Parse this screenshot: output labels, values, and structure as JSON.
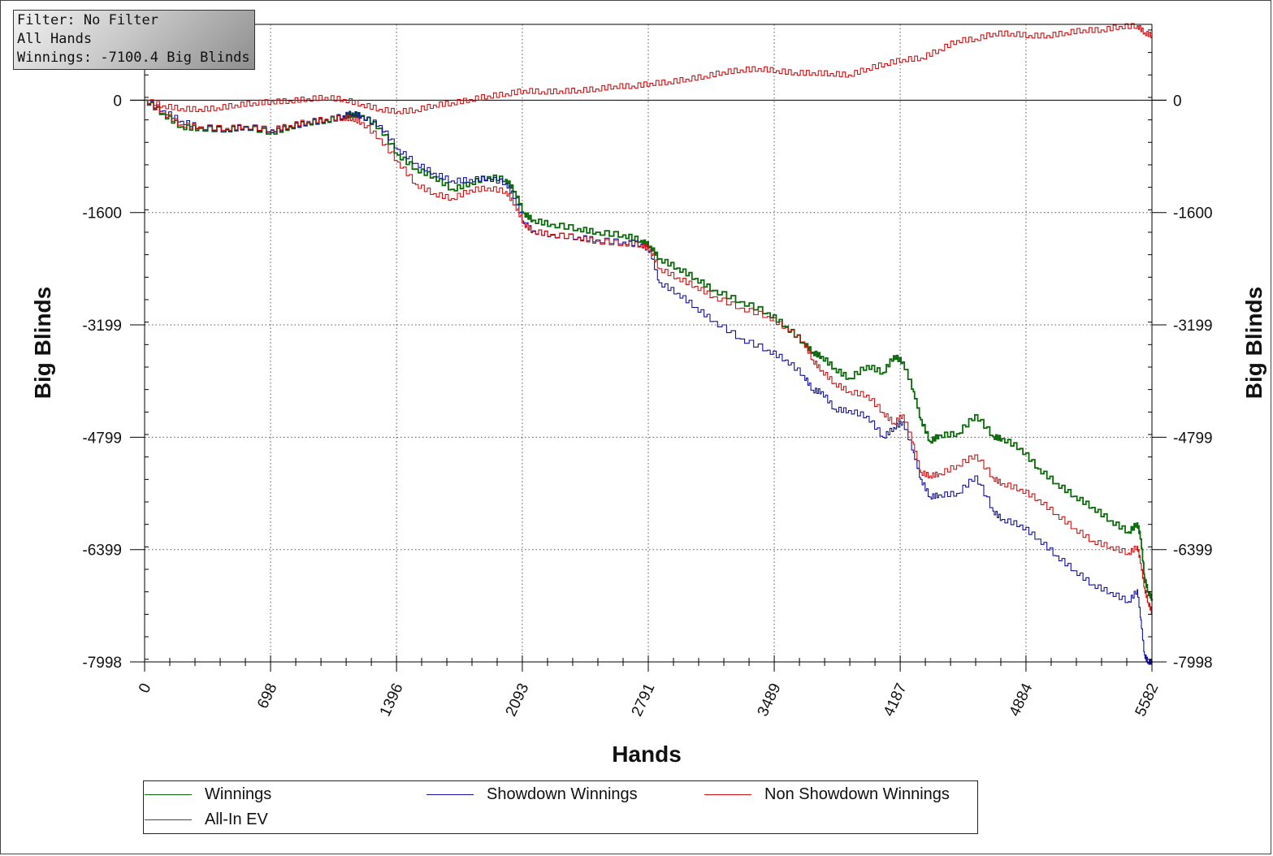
{
  "filter_box": {
    "line1": "Filter: No Filter",
    "line2": "All Hands",
    "line3": "Winnings: -7100.4 Big Blinds"
  },
  "chart_data": {
    "type": "line",
    "xlabel": "Hands",
    "ylabel": "Big Blinds",
    "xlim": [
      0,
      5582
    ],
    "ylim": [
      -7998,
      1080
    ],
    "x_ticks": [
      "0",
      "698",
      "1396",
      "2093",
      "2791",
      "3489",
      "4187",
      "4884",
      "5582"
    ],
    "y_ticks": [
      "0",
      "-1600",
      "-3199",
      "-4799",
      "-6399",
      "-7998"
    ],
    "y_tick_values": [
      0,
      -1600,
      -3199,
      -4799,
      -6399,
      -7998
    ],
    "grid": true,
    "legend": "bottom",
    "series": [
      {
        "name": "Winnings",
        "color": "#0a6b0a",
        "x": [
          0,
          100,
          200,
          300,
          450,
          550,
          700,
          800,
          900,
          1000,
          1100,
          1150,
          1200,
          1300,
          1400,
          1500,
          1600,
          1700,
          1800,
          1900,
          2000,
          2050,
          2100,
          2150,
          2250,
          2400,
          2500,
          2650,
          2750,
          2800,
          2850,
          2950,
          3050,
          3150,
          3300,
          3450,
          3550,
          3650,
          3700,
          3750,
          3820,
          3900,
          4000,
          4090,
          4150,
          4200,
          4260,
          4300,
          4350,
          4400,
          4500,
          4600,
          4700,
          4750,
          4850,
          4950,
          5050,
          5150,
          5250,
          5350,
          5450,
          5500,
          5520,
          5540,
          5560,
          5582
        ],
        "y": [
          0,
          -200,
          -380,
          -400,
          -420,
          -380,
          -460,
          -380,
          -320,
          -290,
          -230,
          -200,
          -220,
          -400,
          -780,
          -980,
          -1090,
          -1270,
          -1180,
          -1090,
          -1130,
          -1300,
          -1610,
          -1710,
          -1770,
          -1830,
          -1880,
          -1920,
          -2000,
          -2080,
          -2260,
          -2390,
          -2540,
          -2710,
          -2870,
          -3030,
          -3220,
          -3460,
          -3590,
          -3650,
          -3820,
          -3960,
          -3780,
          -3880,
          -3640,
          -3730,
          -4150,
          -4550,
          -4860,
          -4770,
          -4750,
          -4480,
          -4790,
          -4820,
          -4960,
          -5250,
          -5460,
          -5640,
          -5800,
          -5990,
          -6150,
          -6020,
          -6250,
          -6800,
          -7000,
          -7100.4
        ]
      },
      {
        "name": "Showdown Winnings",
        "color": "#1010a0",
        "x": [
          0,
          100,
          200,
          300,
          450,
          550,
          700,
          800,
          900,
          1000,
          1100,
          1150,
          1200,
          1300,
          1400,
          1500,
          1600,
          1700,
          1800,
          1900,
          2000,
          2050,
          2100,
          2150,
          2250,
          2400,
          2500,
          2650,
          2750,
          2800,
          2850,
          2950,
          3050,
          3150,
          3300,
          3450,
          3550,
          3650,
          3700,
          3750,
          3820,
          3900,
          4000,
          4090,
          4150,
          4200,
          4260,
          4300,
          4350,
          4400,
          4500,
          4600,
          4700,
          4750,
          4850,
          4950,
          5050,
          5150,
          5250,
          5350,
          5450,
          5500,
          5520,
          5540,
          5560,
          5582
        ],
        "y": [
          0,
          -150,
          -300,
          -380,
          -420,
          -380,
          -430,
          -370,
          -320,
          -280,
          -220,
          -180,
          -230,
          -360,
          -700,
          -900,
          -1040,
          -1150,
          -1130,
          -1110,
          -1180,
          -1400,
          -1740,
          -1860,
          -1920,
          -1950,
          -1990,
          -2020,
          -2050,
          -2150,
          -2600,
          -2750,
          -2950,
          -3150,
          -3400,
          -3560,
          -3700,
          -3920,
          -4130,
          -4150,
          -4400,
          -4420,
          -4500,
          -4800,
          -4660,
          -4580,
          -5020,
          -5400,
          -5650,
          -5620,
          -5600,
          -5350,
          -5850,
          -5970,
          -6050,
          -6250,
          -6490,
          -6700,
          -6900,
          -7010,
          -7140,
          -6970,
          -7400,
          -7900,
          -7998,
          -7998
        ]
      },
      {
        "name": "Non Showdown Winnings",
        "color": "#d01010",
        "x": [
          0,
          100,
          200,
          300,
          450,
          550,
          700,
          800,
          900,
          1000,
          1100,
          1150,
          1200,
          1300,
          1400,
          1500,
          1600,
          1700,
          1800,
          1900,
          2000,
          2050,
          2100,
          2150,
          2250,
          2400,
          2500,
          2650,
          2750,
          2800,
          2850,
          2950,
          3050,
          3150,
          3300,
          3450,
          3550,
          3650,
          3700,
          3750,
          3820,
          3900,
          4000,
          4090,
          4150,
          4200,
          4260,
          4300,
          4350,
          4400,
          4500,
          4600,
          4700,
          4750,
          4850,
          4950,
          5050,
          5150,
          5250,
          5350,
          5450,
          5500,
          5520,
          5540,
          5560,
          5582
        ],
        "y": [
          0,
          -180,
          -350,
          -380,
          -400,
          -370,
          -420,
          -360,
          -300,
          -270,
          -250,
          -260,
          -320,
          -550,
          -880,
          -1200,
          -1330,
          -1400,
          -1280,
          -1250,
          -1300,
          -1490,
          -1760,
          -1870,
          -1910,
          -1960,
          -2010,
          -2040,
          -2060,
          -2130,
          -2400,
          -2530,
          -2650,
          -2800,
          -2960,
          -3080,
          -3240,
          -3440,
          -3700,
          -3850,
          -4030,
          -4150,
          -4200,
          -4450,
          -4600,
          -4480,
          -4900,
          -5300,
          -5350,
          -5320,
          -5200,
          -5050,
          -5380,
          -5460,
          -5540,
          -5690,
          -5900,
          -6100,
          -6280,
          -6360,
          -6450,
          -6350,
          -6600,
          -6950,
          -7150,
          -7300
        ]
      },
      {
        "name": "All-In EV",
        "color": "#d01010",
        "x": [
          0,
          100,
          200,
          300,
          400,
          500,
          600,
          700,
          800,
          900,
          1000,
          1100,
          1200,
          1300,
          1400,
          1500,
          1600,
          1700,
          1800,
          1900,
          2000,
          2100,
          2200,
          2300,
          2400,
          2500,
          2600,
          2700,
          2800,
          2900,
          3000,
          3100,
          3200,
          3300,
          3400,
          3500,
          3600,
          3700,
          3800,
          3900,
          4000,
          4100,
          4200,
          4300,
          4400,
          4500,
          4600,
          4700,
          4800,
          4900,
          5000,
          5100,
          5200,
          5300,
          5400,
          5500,
          5540,
          5582
        ],
        "y": [
          0,
          -80,
          -120,
          -130,
          -110,
          -70,
          -40,
          -20,
          -10,
          20,
          40,
          10,
          -60,
          -130,
          -160,
          -140,
          -70,
          -40,
          10,
          60,
          90,
          140,
          120,
          130,
          140,
          160,
          200,
          200,
          240,
          260,
          300,
          340,
          400,
          430,
          450,
          420,
          390,
          390,
          380,
          360,
          450,
          520,
          580,
          600,
          720,
          850,
          870,
          950,
          950,
          920,
          920,
          960,
          1000,
          1000,
          1050,
          1060,
          960,
          920
        ]
      }
    ]
  },
  "legend": {
    "items": [
      {
        "label": "Winnings",
        "color": "#0a6b0a"
      },
      {
        "label": "Showdown Winnings",
        "color": "#1010a0"
      },
      {
        "label": "Non Showdown Winnings",
        "color": "#d01010"
      },
      {
        "label": "All-In EV",
        "color": "#d01010"
      }
    ]
  }
}
